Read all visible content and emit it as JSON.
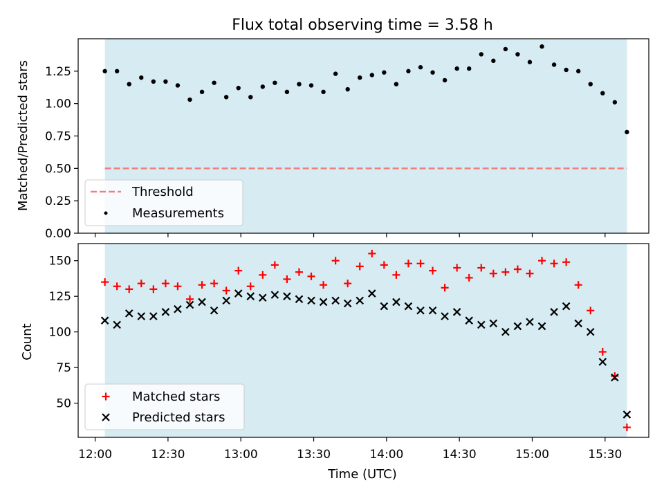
{
  "title": "Flux total observing time = 3.58 h",
  "xlabel": "Time (UTC)",
  "x_ticks": [
    "12:00",
    "12:30",
    "13:00",
    "13:30",
    "14:00",
    "14:30",
    "15:00",
    "15:30"
  ],
  "colors": {
    "shade": "#add8e6",
    "threshold": "#f08080",
    "measurement": "#000000",
    "matched": "#ff0000",
    "predicted": "#000000"
  },
  "chart_data": [
    {
      "type": "scatter",
      "ylabel": "Matched/Predicted stars",
      "ylim": [
        0,
        1.5
      ],
      "y_ticks": [
        "0.00",
        "0.25",
        "0.50",
        "0.75",
        "1.00",
        "1.25"
      ],
      "threshold": 0.5,
      "legend": {
        "placement": "lower-left",
        "entries": [
          "Threshold",
          "Measurements"
        ]
      },
      "x": [
        "12:04",
        "12:09",
        "12:14",
        "12:19",
        "12:24",
        "12:29",
        "12:34",
        "12:39",
        "12:44",
        "12:49",
        "12:54",
        "12:59",
        "13:04",
        "13:09",
        "13:14",
        "13:19",
        "13:24",
        "13:29",
        "13:34",
        "13:39",
        "13:44",
        "13:49",
        "13:54",
        "13:59",
        "14:04",
        "14:09",
        "14:14",
        "14:19",
        "14:24",
        "14:29",
        "14:34",
        "14:39",
        "14:44",
        "14:49",
        "14:54",
        "14:59",
        "15:04",
        "15:09",
        "15:14",
        "15:19",
        "15:24",
        "15:29",
        "15:34",
        "15:39"
      ],
      "series": [
        {
          "name": "Measurements",
          "values": [
            1.25,
            1.25,
            1.15,
            1.2,
            1.17,
            1.17,
            1.14,
            1.03,
            1.09,
            1.16,
            1.05,
            1.12,
            1.05,
            1.13,
            1.16,
            1.09,
            1.15,
            1.14,
            1.09,
            1.23,
            1.11,
            1.2,
            1.22,
            1.24,
            1.15,
            1.25,
            1.28,
            1.24,
            1.18,
            1.27,
            1.27,
            1.38,
            1.33,
            1.42,
            1.38,
            1.32,
            1.44,
            1.3,
            1.26,
            1.25,
            1.15,
            1.08,
            1.01,
            0.78
          ]
        }
      ]
    },
    {
      "type": "scatter",
      "ylabel": "Count",
      "ylim": [
        26,
        162
      ],
      "y_ticks": [
        "50",
        "75",
        "100",
        "125",
        "150"
      ],
      "legend": {
        "placement": "lower-left",
        "entries": [
          "Matched stars",
          "Predicted stars"
        ]
      },
      "x": [
        "12:04",
        "12:09",
        "12:14",
        "12:19",
        "12:24",
        "12:29",
        "12:34",
        "12:39",
        "12:44",
        "12:49",
        "12:54",
        "12:59",
        "13:04",
        "13:09",
        "13:14",
        "13:19",
        "13:24",
        "13:29",
        "13:34",
        "13:39",
        "13:44",
        "13:49",
        "13:54",
        "13:59",
        "14:04",
        "14:09",
        "14:14",
        "14:19",
        "14:24",
        "14:29",
        "14:34",
        "14:39",
        "14:44",
        "14:49",
        "14:54",
        "14:59",
        "15:04",
        "15:09",
        "15:14",
        "15:19",
        "15:24",
        "15:29",
        "15:34",
        "15:39"
      ],
      "series": [
        {
          "name": "Matched stars",
          "values": [
            135,
            132,
            130,
            134,
            130,
            134,
            132,
            123,
            133,
            134,
            129,
            143,
            132,
            140,
            147,
            137,
            142,
            139,
            133,
            150,
            134,
            146,
            155,
            147,
            140,
            148,
            148,
            143,
            131,
            145,
            138,
            145,
            141,
            142,
            144,
            141,
            150,
            148,
            149,
            133,
            115,
            86,
            69,
            33
          ]
        },
        {
          "name": "Predicted stars",
          "values": [
            108,
            105,
            113,
            111,
            111,
            114,
            116,
            119,
            121,
            115,
            122,
            127,
            125,
            124,
            126,
            125,
            123,
            122,
            121,
            122,
            120,
            122,
            127,
            118,
            121,
            118,
            115,
            115,
            111,
            114,
            108,
            105,
            106,
            100,
            104,
            107,
            104,
            114,
            118,
            106,
            100,
            79,
            68,
            42
          ]
        }
      ]
    }
  ]
}
